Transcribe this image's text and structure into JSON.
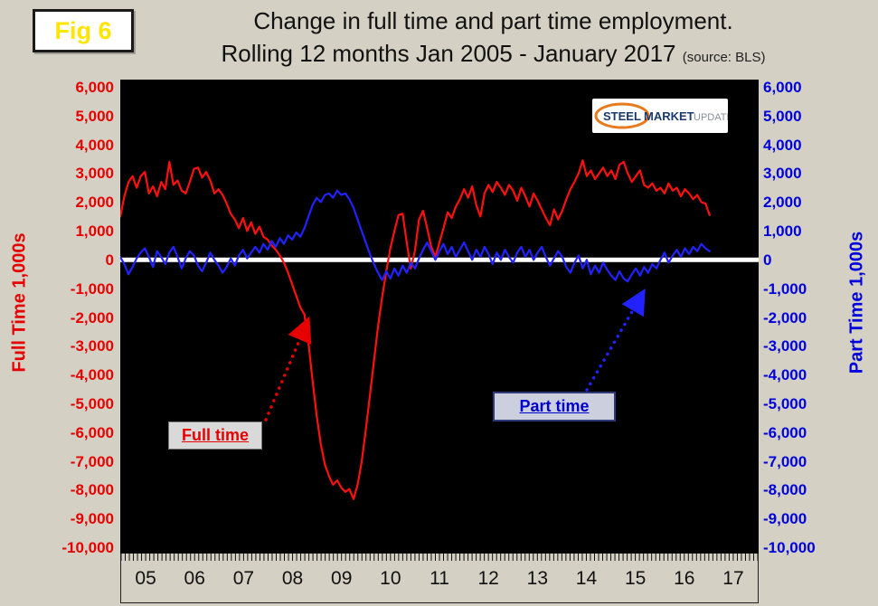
{
  "figure_label": "Fig 6",
  "title": {
    "line1": "Change in full time and part time employment.",
    "line2": "Rolling 12 months Jan 2005 - January 2017",
    "source": "(source: BLS)"
  },
  "axes": {
    "left_title": "Full Time 1,000s",
    "right_title": "Part Time 1,000s",
    "y_tick_labels": [
      "6,000",
      "5,000",
      "4,000",
      "3,000",
      "2,000",
      "1,000",
      "0",
      "-1,000",
      "-2,000",
      "-3,000",
      "-4,000",
      "-5,000",
      "-6,000",
      "-7,000",
      "-8,000",
      "-9,000",
      "-10,000"
    ],
    "x_tick_labels": [
      "05",
      "06",
      "07",
      "08",
      "09",
      "10",
      "11",
      "12",
      "13",
      "14",
      "15",
      "16",
      "17"
    ]
  },
  "legend": {
    "full_time_label": "Full time",
    "part_time_label": "Part time"
  },
  "logo": {
    "steel": "STEEL",
    "market": "MARKET",
    "update": "UPDATE"
  },
  "colors": {
    "full_time": "#ff1010",
    "part_time": "#2222ff",
    "left_axis": "#e60000",
    "right_axis": "#0000dd",
    "background": "#d4d0c4",
    "plot_bg": "#000000",
    "zero_line": "#ffffff",
    "fig_label": "#ffe500",
    "logo_orange": "#e87a1e",
    "logo_navy": "#1b3a6b"
  },
  "chart_data": {
    "type": "line",
    "title": "Change in full time and part time employment. Rolling 12 months Jan 2005 - January 2017",
    "source": "BLS",
    "x_unit": "month",
    "x_start_label": "Jan 2005",
    "x_end_label": "Jan 2017",
    "x_axis_segments": 13,
    "ylim": [
      -10000,
      6000
    ],
    "y_tick_step": 1000,
    "grid": false,
    "series": [
      {
        "name": "Full time",
        "color_key": "full_time",
        "values": [
          1500,
          2200,
          2700,
          2900,
          2500,
          2900,
          3050,
          2300,
          2550,
          2200,
          2700,
          2450,
          3400,
          2600,
          2750,
          2400,
          2300,
          2700,
          3150,
          3200,
          2850,
          3050,
          2750,
          2300,
          2450,
          2250,
          1950,
          1600,
          1400,
          1100,
          1450,
          1000,
          1300,
          900,
          1150,
          800,
          700,
          500,
          350,
          150,
          -100,
          -450,
          -850,
          -1250,
          -1650,
          -1900,
          -2900,
          -4200,
          -5400,
          -6400,
          -7100,
          -7500,
          -7800,
          -7650,
          -7900,
          -8050,
          -7950,
          -8300,
          -7800,
          -7000,
          -5900,
          -4700,
          -3500,
          -2300,
          -1300,
          -400,
          400,
          1000,
          1550,
          1600,
          600,
          -300,
          300,
          1400,
          1700,
          1100,
          450,
          100,
          600,
          1100,
          1650,
          1450,
          1850,
          2100,
          2450,
          2150,
          2550,
          1900,
          1500,
          2300,
          2600,
          2350,
          2700,
          2500,
          2250,
          2600,
          2400,
          2050,
          2500,
          2200,
          1850,
          2300,
          2050,
          1750,
          1450,
          1200,
          1750,
          1400,
          1700,
          2100,
          2450,
          2700,
          3000,
          3450,
          2900,
          3100,
          2800,
          3000,
          3200,
          2900,
          3100,
          2800,
          3300,
          3400,
          3000,
          2700,
          2900,
          3100,
          2600,
          2500,
          2650,
          2400,
          2500,
          2300,
          2650,
          2400,
          2500,
          2200,
          2450,
          2300,
          2100,
          2250,
          2000,
          1950,
          1550
        ]
      },
      {
        "name": "Part time",
        "color_key": "part_time",
        "values": [
          100,
          -150,
          -500,
          -250,
          50,
          250,
          400,
          100,
          -250,
          300,
          100,
          -150,
          250,
          450,
          100,
          -300,
          50,
          300,
          150,
          -200,
          -400,
          -100,
          250,
          0,
          -200,
          -450,
          -250,
          50,
          -200,
          150,
          350,
          50,
          250,
          450,
          250,
          550,
          350,
          650,
          450,
          750,
          550,
          850,
          700,
          950,
          800,
          1100,
          1500,
          1900,
          2150,
          2000,
          2250,
          2300,
          2150,
          2400,
          2250,
          2300,
          2100,
          1800,
          1400,
          1000,
          600,
          200,
          -150,
          -450,
          -700,
          -400,
          -650,
          -300,
          -550,
          -200,
          -450,
          -100,
          -300,
          50,
          350,
          600,
          300,
          0,
          300,
          550,
          200,
          450,
          100,
          350,
          600,
          300,
          0,
          350,
          100,
          450,
          200,
          -150,
          250,
          0,
          350,
          100,
          -100,
          250,
          450,
          100,
          350,
          0,
          250,
          450,
          100,
          -200,
          50,
          300,
          100,
          -250,
          -450,
          -100,
          150,
          -300,
          0,
          -500,
          -200,
          -450,
          -100,
          -350,
          -550,
          -700,
          -400,
          -650,
          -750,
          -500,
          -300,
          -550,
          -250,
          -450,
          -150,
          -300,
          0,
          250,
          -100,
          150,
          350,
          100,
          400,
          200,
          450,
          300,
          550,
          400,
          300
        ]
      }
    ]
  }
}
